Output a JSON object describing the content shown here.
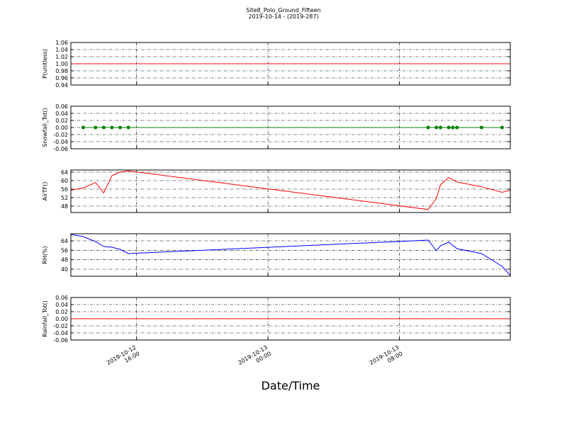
{
  "chart_data": {
    "title": "Site8_Polo_Ground_Fifteen",
    "subtitle": "2019-10-14 - (2019-287)",
    "xlabel": "Date/Time",
    "xlim": [
      "2019-10-12 12:00",
      "2019-10-13 14:45"
    ],
    "xticks": [
      {
        "value": "2019-10-12 16:00",
        "label": "2019-10-12\n16:00"
      },
      {
        "value": "2019-10-13 00:00",
        "label": "2019-10-13\n00:00"
      },
      {
        "value": "2019-10-13 08:00",
        "label": "2019-10-13\n08:00"
      }
    ],
    "panels": [
      {
        "type": "line",
        "ylabel": "P(unitless)",
        "ylim": [
          0.94,
          1.06
        ],
        "yticks": [
          0.94,
          0.96,
          0.98,
          {
            "value": 1,
            "label": "1.00"
          },
          1.02,
          1.04,
          1.06
        ],
        "series": [
          {
            "color": "#ff0000",
            "markers": false,
            "x": [
              "2019-10-12 12:00",
              "2019-10-13 14:45"
            ],
            "values": [
              1,
              1
            ]
          }
        ]
      },
      {
        "type": "line",
        "ylabel": "Snowfall_Tot()",
        "ylim": [
          -0.06,
          0.06
        ],
        "yticks": [
          -0.06,
          -0.04,
          -0.02,
          {
            "value": 0,
            "label": "0.00"
          },
          0.02,
          0.04,
          0.06
        ],
        "series": [
          {
            "color": "#008000",
            "markers": true,
            "x": [
              "2019-10-12 12:45",
              "2019-10-12 13:30",
              "2019-10-12 14:00",
              "2019-10-12 14:30",
              "2019-10-12 15:00",
              "2019-10-12 15:30",
              "2019-10-13 09:45",
              "2019-10-13 10:15",
              "2019-10-13 10:30",
              "2019-10-13 11:00",
              "2019-10-13 11:15",
              "2019-10-13 11:30",
              "2019-10-13 13:00",
              "2019-10-13 14:15"
            ],
            "values": [
              0,
              0,
              0,
              0,
              0,
              0,
              0,
              0,
              0,
              0,
              0,
              0,
              0,
              0
            ]
          }
        ]
      },
      {
        "type": "line",
        "ylabel": "AirTF()",
        "ylim": [
          45,
          65
        ],
        "yticks": [
          48,
          52,
          56,
          60,
          64
        ],
        "series": [
          {
            "color": "#ff0000",
            "markers": false,
            "x": [
              "2019-10-12 12:00",
              "2019-10-12 12:45",
              "2019-10-12 13:30",
              "2019-10-12 14:00",
              "2019-10-12 14:30",
              "2019-10-12 15:00",
              "2019-10-12 15:30",
              "2019-10-13 09:45",
              "2019-10-13 10:15",
              "2019-10-13 10:30",
              "2019-10-13 11:00",
              "2019-10-13 11:30",
              "2019-10-13 13:00",
              "2019-10-13 14:15",
              "2019-10-13 14:45"
            ],
            "values": [
              55.5,
              56.5,
              59.1,
              54.2,
              62.4,
              64,
              64.6,
              46.4,
              51.6,
              58.1,
              61.4,
              59.4,
              57.1,
              54.5,
              55.5
            ]
          }
        ]
      },
      {
        "type": "line",
        "ylabel": "RH(%)",
        "ylim": [
          34,
          70
        ],
        "yticks": [
          40,
          48,
          56,
          64
        ],
        "series": [
          {
            "color": "#0000ff",
            "markers": false,
            "x": [
              "2019-10-12 12:00",
              "2019-10-12 12:45",
              "2019-10-12 13:30",
              "2019-10-12 14:00",
              "2019-10-12 14:30",
              "2019-10-12 15:00",
              "2019-10-12 15:30",
              "2019-10-13 09:45",
              "2019-10-13 10:15",
              "2019-10-13 10:30",
              "2019-10-13 11:00",
              "2019-10-13 11:30",
              "2019-10-13 13:00",
              "2019-10-13 14:15",
              "2019-10-13 14:45"
            ],
            "values": [
              69.4,
              67.6,
              63.4,
              59.2,
              58.6,
              56.8,
              53.2,
              64.6,
              55.6,
              59.8,
              62.8,
              57.4,
              53.2,
              42.4,
              34.6
            ]
          }
        ]
      },
      {
        "type": "line",
        "ylabel": "Rainfall_Tot()",
        "ylim": [
          -0.06,
          0.06
        ],
        "yticks": [
          -0.06,
          -0.04,
          -0.02,
          {
            "value": 0,
            "label": "0.00"
          },
          0.02,
          0.04,
          0.06
        ],
        "series": [
          {
            "color": "#ff0000",
            "markers": false,
            "x": [
              "2019-10-12 12:00",
              "2019-10-13 14:45"
            ],
            "values": [
              0,
              0
            ]
          }
        ]
      }
    ]
  }
}
